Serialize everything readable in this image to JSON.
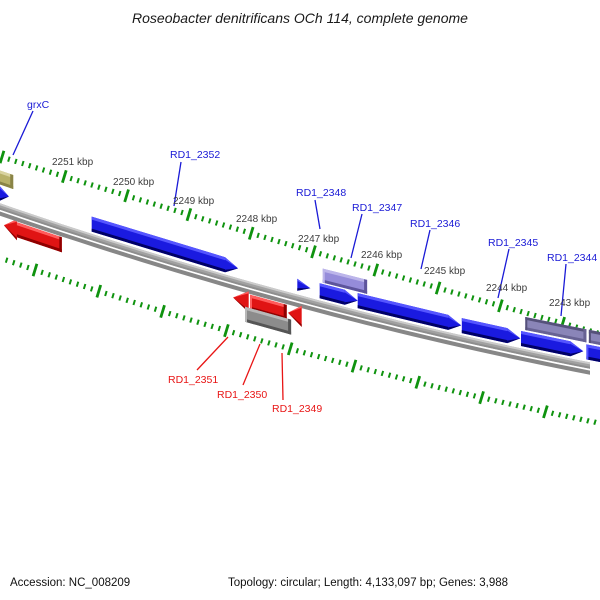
{
  "title": "Roseobacter denitrificans OCh 114, complete genome",
  "status_bar": {
    "accession": "Accession: NC_008209",
    "summary": "Topology: circular; Length: 4,133,097 bp; Genes: 3,988"
  },
  "ruler": {
    "unit": "kbp",
    "visible_range_kbp": [
      2252,
      2242
    ],
    "labels": [
      "2251 kbp",
      "2250 kbp",
      "2249 kbp",
      "2248 kbp",
      "2247 kbp",
      "2246 kbp",
      "2245 kbp",
      "2244 kbp",
      "2243 kbp"
    ],
    "tick_color": "#0f930f"
  },
  "gene_labels": [
    {
      "text": "grxC",
      "color": "#1a1ad6"
    },
    {
      "text": "RD1_2352",
      "color": "#1a1ad6"
    },
    {
      "text": "RD1_2348",
      "color": "#1a1ad6"
    },
    {
      "text": "RD1_2347",
      "color": "#1a1ad6"
    },
    {
      "text": "RD1_2346",
      "color": "#1a1ad6"
    },
    {
      "text": "RD1_2345",
      "color": "#1a1ad6"
    },
    {
      "text": "RD1_2344",
      "color": "#1a1ad6"
    },
    {
      "text": "RD1_2351",
      "color": "#e81515"
    },
    {
      "text": "RD1_2350",
      "color": "#e81515"
    },
    {
      "text": "RD1_2349",
      "color": "#e81515"
    }
  ],
  "palette": {
    "blue": {
      "body": "#1a1ae0",
      "top": "#5555ff",
      "bottom": "#000066"
    },
    "red": {
      "body": "#e01414",
      "top": "#ff5c5c",
      "bottom": "#8f0000"
    },
    "gray": {
      "body": "#8c8c8c",
      "top": "#b8b8b8",
      "bottom": "#555555"
    },
    "yellow": {
      "body": "#b8b169",
      "top": "#d9d3a0",
      "bottom": "#8a8446"
    },
    "purple": {
      "body": "#958cda",
      "top": "#bcb5ea",
      "bottom": "#5d549c"
    },
    "purple2": {
      "body": "#8a85b8",
      "top": "#55517a",
      "bottom": "#676293"
    },
    "backbone_main": "#a2a2a2",
    "backbone_highlight": "#cbcbcb",
    "backbone_shadow": "#878787"
  },
  "genes": [
    {
      "name": "grxC",
      "strand": "forward",
      "ring": 2,
      "shape": "box",
      "color": "yellow",
      "start_kbp": 2252.12,
      "end_kbp": 2251.82,
      "height": 14,
      "cut": "left"
    },
    {
      "name": "",
      "strand": "forward",
      "ring": 1,
      "shape": "arrow-right",
      "color": "blue",
      "start_kbp": 2252.14,
      "end_kbp": 2251.89,
      "cut": "left"
    },
    {
      "name": "RD1_2352",
      "strand": "forward",
      "ring": 1,
      "shape": "arrow-right",
      "color": "blue",
      "start_kbp": 2250.56,
      "end_kbp": 2248.21
    },
    {
      "name": "RD1_2348",
      "strand": "forward",
      "ring": 1,
      "shape": "head-right",
      "color": "blue",
      "start_kbp": 2247.26,
      "end_kbp": 2247.05,
      "height": 12
    },
    {
      "name": "RD1_2347",
      "strand": "forward",
      "ring": 2,
      "shape": "box",
      "color": "purple",
      "start_kbp": 2246.85,
      "end_kbp": 2246.14,
      "height": 14
    },
    {
      "name": "",
      "strand": "forward",
      "ring": 1,
      "shape": "arrow-right",
      "color": "blue",
      "start_kbp": 2246.9,
      "end_kbp": 2246.29
    },
    {
      "name": "RD1_2346",
      "strand": "forward",
      "ring": 1,
      "shape": "arrow-right",
      "color": "blue",
      "start_kbp": 2246.29,
      "end_kbp": 2244.63
    },
    {
      "name": "RD1_2345",
      "strand": "forward",
      "ring": 1,
      "shape": "arrow-right",
      "color": "blue",
      "start_kbp": 2244.62,
      "end_kbp": 2243.68
    },
    {
      "name": "RD1_2344",
      "strand": "forward",
      "ring": 2,
      "shape": "box",
      "color": "purple2",
      "start_kbp": 2243.6,
      "end_kbp": 2242.62,
      "height": 13
    },
    {
      "name": "",
      "strand": "forward",
      "ring": 2,
      "shape": "box",
      "color": "purple2",
      "start_kbp": 2242.58,
      "end_kbp": 2242.33,
      "height": 13,
      "cut": "right"
    },
    {
      "name": "",
      "strand": "forward",
      "ring": 1,
      "shape": "arrow-right",
      "color": "blue",
      "start_kbp": 2243.67,
      "end_kbp": 2242.67
    },
    {
      "name": "",
      "strand": "forward",
      "ring": 1,
      "shape": "box",
      "color": "blue",
      "start_kbp": 2242.62,
      "end_kbp": 2242.33,
      "cut": "right"
    },
    {
      "name": "",
      "strand": "reverse",
      "ring": 1,
      "shape": "arrow-left",
      "color": "red",
      "start_kbp": 2251.97,
      "end_kbp": 2251.04,
      "head_h": 21,
      "behind": true
    },
    {
      "name": "RD1_2351",
      "strand": "reverse",
      "ring": 1,
      "shape": "head-left",
      "color": "red",
      "start_kbp": 2248.29,
      "end_kbp": 2248.04,
      "height": 21
    },
    {
      "name": "RD1_2350",
      "strand": "reverse",
      "ring": 1,
      "shape": "box",
      "color": "red",
      "start_kbp": 2248.02,
      "end_kbp": 2247.43
    },
    {
      "name": "RD1_2349",
      "strand": "reverse",
      "ring": 1,
      "shape": "head-left",
      "color": "red",
      "start_kbp": 2247.41,
      "end_kbp": 2247.19,
      "height": 21
    },
    {
      "name": "",
      "strand": "reverse",
      "ring": 2,
      "shape": "box",
      "color": "gray",
      "start_kbp": 2248.1,
      "end_kbp": 2247.36
    }
  ]
}
